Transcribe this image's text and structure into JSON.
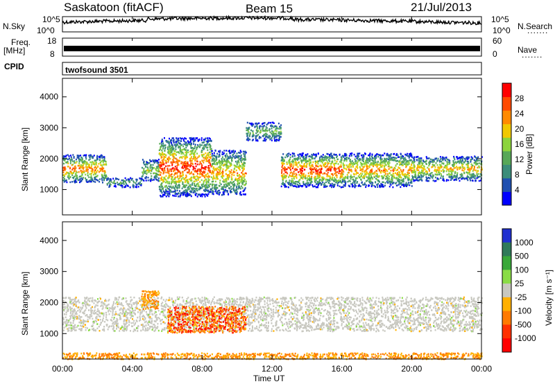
{
  "header": {
    "radar": "Saskatoon (fitACF)",
    "beam": "Beam 15",
    "date": "21/Jul/2013"
  },
  "panels": {
    "nsky_label": "N.Sky",
    "nsky_ticks": [
      "10^5",
      "10^0"
    ],
    "nsearch_label": "N.Search",
    "nsearch_ticks": [
      "10^5",
      "10^0"
    ],
    "freq_label_1": "Freq.",
    "freq_label_2": "[MHz]",
    "freq_ticks": [
      "18",
      "8"
    ],
    "nave_label": "Nave",
    "nave_ticks": [
      "60",
      "0"
    ],
    "cpid_label": "CPID",
    "cpid_text": "twofsound 3501",
    "dots": "......."
  },
  "colors": {
    "line": "#000000",
    "power_scale": [
      "#0000ff",
      "#1f4fb0",
      "#3c8d7a",
      "#58a858",
      "#8cd43c",
      "#f0c800",
      "#ff8a00",
      "#ff4a00",
      "#ff0000"
    ],
    "velocity_scale": [
      "#2030d0",
      "#2f7a5a",
      "#39a83a",
      "#8adc46",
      "#c8c8c0",
      "#ffb000",
      "#ff7a00",
      "#ff3000",
      "#ff0000"
    ]
  },
  "chart_data": [
    {
      "type": "heatmap",
      "title": "",
      "xlabel": "Time UT",
      "ylabel": "Slant Range [km]",
      "xlim": [
        0,
        24
      ],
      "ylim": [
        180,
        4600
      ],
      "x_ticks": [
        "00:00",
        "04:00",
        "08:00",
        "12:00",
        "16:00",
        "20:00",
        "00:00"
      ],
      "y_ticks": [
        1000,
        2000,
        3000,
        4000
      ],
      "colorbar_label": "Power [dB]",
      "colorbar_range": [
        0,
        32
      ],
      "colorbar_ticks": [
        4,
        8,
        12,
        16,
        20,
        24,
        28
      ],
      "bands": [
        {
          "x": [
            0,
            2.5
          ],
          "y": [
            1250,
            2150
          ],
          "peak": 24
        },
        {
          "x": [
            2.5,
            4.5
          ],
          "y": [
            1100,
            1400
          ],
          "peak": 10
        },
        {
          "x": [
            4.5,
            5.5
          ],
          "y": [
            1300,
            2000
          ],
          "peak": 14
        },
        {
          "x": [
            5.5,
            8.5
          ],
          "y": [
            800,
            2700
          ],
          "peak": 28
        },
        {
          "x": [
            8.5,
            10.5
          ],
          "y": [
            850,
            2300
          ],
          "peak": 22
        },
        {
          "x": [
            10.5,
            12.5
          ],
          "y": [
            2600,
            3200
          ],
          "peak": 12
        },
        {
          "x": [
            12.5,
            16
          ],
          "y": [
            1100,
            2200
          ],
          "peak": 28
        },
        {
          "x": [
            16,
            20
          ],
          "y": [
            1100,
            2200
          ],
          "peak": 22
        },
        {
          "x": [
            20,
            24
          ],
          "y": [
            1300,
            2100
          ],
          "peak": 20
        }
      ]
    },
    {
      "type": "heatmap",
      "title": "",
      "xlabel": "Time UT",
      "ylabel": "Slant Range [km]",
      "xlim": [
        0,
        24
      ],
      "ylim": [
        180,
        4600
      ],
      "x_ticks": [
        "00:00",
        "04:00",
        "08:00",
        "12:00",
        "16:00",
        "20:00",
        "00:00"
      ],
      "y_ticks": [
        1000,
        2000,
        3000,
        4000
      ],
      "colorbar_label": "Velocity [m s⁻¹]",
      "colorbar_ticks": [
        "1000",
        "500",
        "100",
        "25",
        "-25",
        "-100",
        "-500",
        "-1000"
      ],
      "regions": [
        {
          "x": [
            0,
            24
          ],
          "y": [
            1100,
            2200
          ],
          "velocity": "-25 to 25"
        },
        {
          "x": [
            6,
            10.5
          ],
          "y": [
            1050,
            1900
          ],
          "velocity": "-500 to -1000"
        },
        {
          "x": [
            4.5,
            5.5
          ],
          "y": [
            1800,
            2400
          ],
          "velocity": "-100 to -500"
        },
        {
          "x": [
            0,
            24
          ],
          "y": [
            200,
            400
          ],
          "velocity": "-100 to -500"
        }
      ]
    }
  ]
}
